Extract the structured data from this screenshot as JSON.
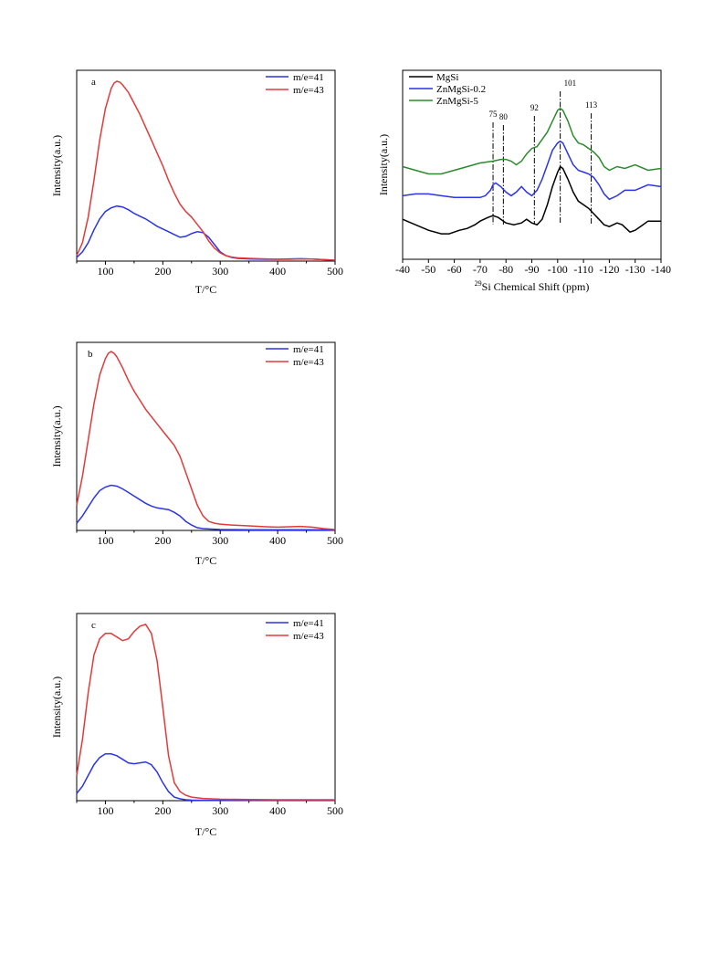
{
  "colors": {
    "blue": "#2b34e6",
    "red": "#e23a3a",
    "black": "#000000",
    "green": "#2c8a2c"
  },
  "chart_data": [
    {
      "type": "line",
      "panel": "a",
      "xlabel": "T/°C",
      "ylabel": "Intensity(a.u.)",
      "xlim": [
        50,
        500
      ],
      "ylim": [
        0,
        100
      ],
      "xticks": [
        "100",
        "200",
        "300",
        "400",
        "500"
      ],
      "legend_position": "top-right",
      "series": [
        {
          "name": "m/e=41",
          "color": "blue",
          "x": [
            50,
            60,
            70,
            80,
            90,
            100,
            110,
            120,
            130,
            140,
            150,
            160,
            170,
            180,
            190,
            200,
            210,
            220,
            230,
            240,
            250,
            260,
            270,
            280,
            290,
            300,
            310,
            320,
            330,
            350,
            380,
            400,
            420,
            440,
            460,
            480,
            500
          ],
          "y": [
            2,
            5,
            10,
            17,
            23,
            27,
            29,
            30,
            29.5,
            28,
            26,
            24.5,
            23,
            21,
            19,
            17.5,
            16,
            14.5,
            13,
            13.5,
            15,
            16,
            15.5,
            13,
            9,
            5,
            3,
            2,
            1.5,
            1.2,
            1,
            1,
            1.2,
            1.3,
            1.1,
            0.8,
            0.5
          ]
        },
        {
          "name": "m/e=43",
          "color": "red",
          "x": [
            50,
            60,
            70,
            80,
            90,
            100,
            110,
            115,
            120,
            125,
            130,
            140,
            150,
            160,
            170,
            180,
            190,
            200,
            210,
            220,
            230,
            240,
            250,
            260,
            270,
            280,
            290,
            300,
            310,
            320,
            330,
            350,
            380,
            400,
            420,
            440,
            460,
            480,
            500
          ],
          "y": [
            3,
            10,
            24,
            44,
            66,
            83,
            94,
            97,
            98,
            97.5,
            96,
            92,
            86,
            80,
            73,
            66,
            59,
            52,
            44,
            37,
            31,
            27,
            24,
            20,
            16,
            11,
            7,
            4.5,
            3,
            2.2,
            1.8,
            1.5,
            1.2,
            1,
            1,
            1.2,
            1.1,
            0.8,
            0.5
          ]
        }
      ]
    },
    {
      "type": "line",
      "panel": "b",
      "xlabel": "T/°C",
      "ylabel": "Intensity(a.u.)",
      "xlim": [
        50,
        500
      ],
      "ylim": [
        0,
        100
      ],
      "xticks": [
        "100",
        "200",
        "300",
        "400",
        "500"
      ],
      "legend_position": "top-right",
      "series": [
        {
          "name": "m/e=41",
          "color": "blue",
          "x": [
            50,
            60,
            70,
            80,
            90,
            100,
            110,
            120,
            130,
            140,
            150,
            160,
            170,
            180,
            190,
            200,
            210,
            220,
            230,
            240,
            250,
            260,
            270,
            280,
            300,
            350,
            400,
            450,
            500
          ],
          "y": [
            4,
            8,
            13,
            18,
            22,
            24,
            25,
            24.5,
            23,
            21,
            19,
            17,
            15,
            13.5,
            12.5,
            12,
            11.5,
            10,
            8,
            5,
            3,
            1.5,
            1,
            0.8,
            0.5,
            0.4,
            0.4,
            0.4,
            0.3
          ]
        },
        {
          "name": "m/e=43",
          "color": "red",
          "x": [
            50,
            60,
            70,
            80,
            90,
            100,
            105,
            110,
            115,
            120,
            130,
            140,
            150,
            160,
            170,
            180,
            190,
            200,
            210,
            220,
            230,
            240,
            250,
            260,
            270,
            280,
            290,
            300,
            320,
            350,
            380,
            400,
            420,
            440,
            460,
            480,
            500
          ],
          "y": [
            14,
            30,
            50,
            70,
            86,
            95,
            98,
            99,
            98,
            96,
            90,
            83,
            77,
            72,
            67,
            63,
            59,
            55,
            51,
            47,
            41,
            32,
            23,
            14,
            8,
            5,
            4,
            3.5,
            3,
            2.5,
            2,
            1.8,
            2,
            2.2,
            1.8,
            1,
            0.5
          ]
        }
      ]
    },
    {
      "type": "line",
      "panel": "c",
      "xlabel": "T/°C",
      "ylabel": "Intensity(a.u.)",
      "xlim": [
        50,
        500
      ],
      "ylim": [
        0,
        100
      ],
      "xticks": [
        "100",
        "200",
        "300",
        "400",
        "500"
      ],
      "legend_position": "top-right",
      "series": [
        {
          "name": "m/e=41",
          "color": "blue",
          "x": [
            50,
            60,
            70,
            80,
            90,
            100,
            110,
            120,
            130,
            140,
            150,
            160,
            170,
            180,
            190,
            200,
            210,
            220,
            230,
            240,
            250,
            270,
            300,
            350,
            400,
            450,
            500
          ],
          "y": [
            4,
            8,
            14,
            20,
            24,
            26,
            26,
            25,
            23,
            21,
            20.5,
            21,
            21.5,
            20,
            16,
            10,
            5,
            2,
            1,
            0.5,
            0.3,
            0.2,
            0.2,
            0.2,
            0.2,
            0.2,
            0.2
          ]
        },
        {
          "name": "m/e=43",
          "color": "red",
          "x": [
            50,
            60,
            70,
            80,
            90,
            100,
            110,
            120,
            130,
            140,
            150,
            160,
            170,
            180,
            190,
            200,
            210,
            220,
            230,
            240,
            250,
            270,
            300,
            350,
            400,
            450,
            500
          ],
          "y": [
            14,
            34,
            60,
            81,
            90,
            93,
            93,
            91,
            89,
            90,
            94,
            97,
            98,
            93,
            78,
            52,
            25,
            10,
            5,
            3,
            2,
            1.2,
            0.8,
            0.6,
            0.5,
            0.5,
            0.5
          ]
        }
      ]
    },
    {
      "type": "line",
      "panel": "nmr",
      "xlabel": "Si Chemical Shift (ppm)",
      "xlabel_superscript": "29",
      "ylabel": "Intensity(a.u.)",
      "xlim": [
        -40,
        -140
      ],
      "ylim": [
        0,
        100
      ],
      "xticks": [
        "-40",
        "-50",
        "-60",
        "-70",
        "-80",
        "-90",
        "-100",
        "-110",
        "-120",
        "-130",
        "-140"
      ],
      "legend_position": "top-left",
      "annotations": [
        {
          "label": "75",
          "x": -75
        },
        {
          "label": "80",
          "x": -79
        },
        {
          "label": "92",
          "x": -91
        },
        {
          "label": "101",
          "x": -101
        },
        {
          "label": "113",
          "x": -113
        }
      ],
      "series": [
        {
          "name": "MgSi",
          "color": "black",
          "x": [
            -40,
            -45,
            -50,
            -55,
            -58,
            -62,
            -65,
            -68,
            -70,
            -73,
            -75,
            -77,
            -80,
            -83,
            -86,
            -88,
            -90,
            -92,
            -94,
            -96,
            -98,
            -100,
            -101,
            -102,
            -104,
            -106,
            -108,
            -110,
            -112,
            -114,
            -116,
            -118,
            -120,
            -123,
            -125,
            -128,
            -130,
            -133,
            -135,
            -140
          ],
          "y": [
            22,
            19,
            16,
            14,
            14,
            16,
            17,
            19,
            21,
            23,
            24,
            23,
            20,
            19,
            20,
            22,
            20,
            19,
            22,
            30,
            40,
            48,
            51,
            50,
            44,
            37,
            32,
            30,
            28,
            25,
            22,
            19,
            18,
            20,
            19,
            15,
            16,
            19,
            21,
            21
          ]
        },
        {
          "name": "ZnMgSi-0.2",
          "color": "blue",
          "x": [
            -40,
            -45,
            -50,
            -55,
            -60,
            -65,
            -70,
            -72,
            -74,
            -75,
            -76,
            -78,
            -80,
            -82,
            -84,
            -86,
            -88,
            -90,
            -92,
            -94,
            -96,
            -98,
            -100,
            -101,
            -102,
            -104,
            -106,
            -108,
            -110,
            -112,
            -114,
            -116,
            -118,
            -120,
            -123,
            -126,
            -130,
            -135,
            -140
          ],
          "y": [
            35,
            36,
            36,
            35,
            34,
            34,
            34,
            35,
            38,
            41,
            42,
            40,
            37,
            35,
            37,
            40,
            37,
            35,
            38,
            44,
            52,
            60,
            64,
            65,
            64,
            58,
            52,
            49,
            48,
            47,
            45,
            41,
            36,
            33,
            35,
            38,
            38,
            41,
            40
          ]
        },
        {
          "name": "ZnMgSi-5",
          "color": "green",
          "x": [
            -40,
            -45,
            -50,
            -55,
            -60,
            -65,
            -70,
            -75,
            -78,
            -80,
            -82,
            -84,
            -86,
            -88,
            -90,
            -92,
            -94,
            -96,
            -98,
            -100,
            -101,
            -102,
            -104,
            -106,
            -108,
            -110,
            -112,
            -114,
            -116,
            -118,
            -120,
            -123,
            -126,
            -130,
            -135,
            -140
          ],
          "y": [
            51,
            49,
            47,
            47,
            49,
            51,
            53,
            54,
            55,
            55,
            54,
            52,
            54,
            58,
            61,
            62,
            66,
            70,
            76,
            82,
            83,
            82,
            76,
            68,
            64,
            63,
            61,
            59,
            56,
            51,
            49,
            51,
            50,
            52,
            49,
            50
          ]
        }
      ]
    }
  ]
}
